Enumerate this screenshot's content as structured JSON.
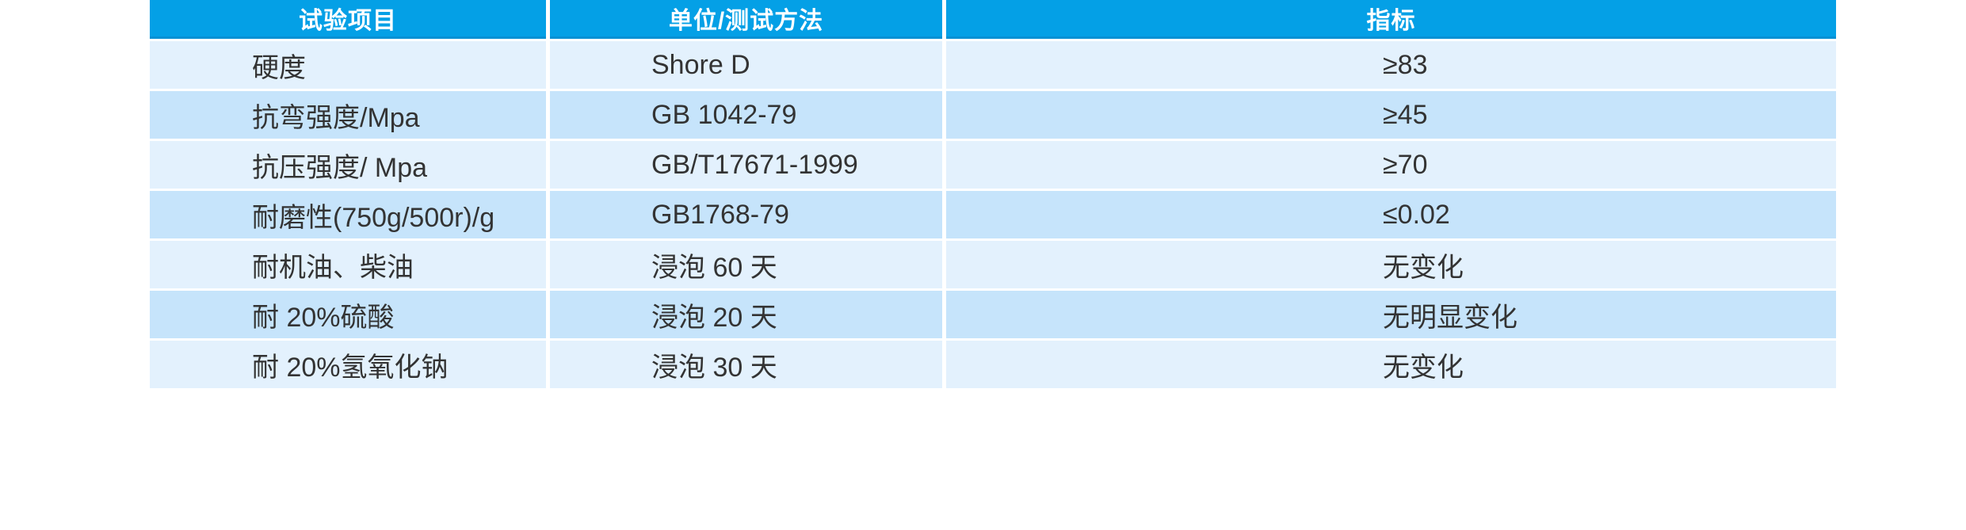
{
  "table": {
    "columns": [
      {
        "label": "试验项目"
      },
      {
        "label": "单位/测试方法"
      },
      {
        "label": "指标"
      }
    ],
    "rows": [
      {
        "item": "硬度",
        "method": "Shore D",
        "index": "≥83"
      },
      {
        "item": "抗弯强度/Mpa",
        "method": "GB 1042-79",
        "index": "≥45"
      },
      {
        "item": "抗压强度/ Mpa",
        "method": "GB/T17671-1999",
        "index": "≥70"
      },
      {
        "item": "耐磨性(750g/500r)/g",
        "method": "GB1768-79",
        "index": "≤0.02"
      },
      {
        "item": "耐机油、柴油",
        "method": "浸泡 60 天",
        "index": "无变化"
      },
      {
        "item": "耐 20%硫酸",
        "method": "浸泡 20 天",
        "index": "无明显变化"
      },
      {
        "item": "耐 20%氢氧化钠",
        "method": "浸泡 30 天",
        "index": "无变化"
      }
    ],
    "colors": {
      "header_bg": "#04a0e6",
      "header_edge": "#0891d4",
      "header_text": "#ffffff",
      "row_light": "#e3f1fd",
      "row_dark": "#c6e4fb",
      "body_text": "#333333",
      "gap": "#ffffff"
    }
  }
}
